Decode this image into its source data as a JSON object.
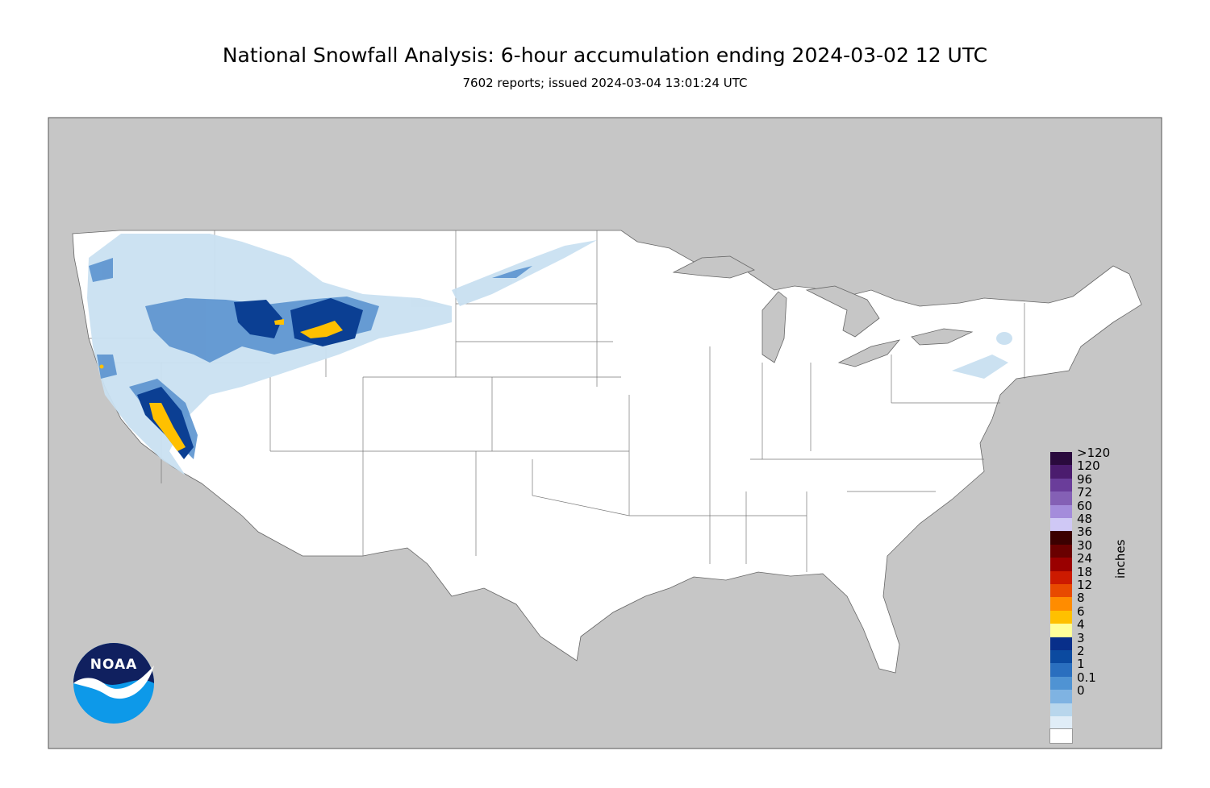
{
  "title": "National Snowfall Analysis: 6-hour accumulation ending 2024-03-02 12 UTC",
  "subtitle": "7602 reports; issued 2024-03-04 13:01:24 UTC",
  "logo_text": "NOAA",
  "legend": {
    "units": "inches",
    "items": [
      {
        "label": ">120",
        "color": "#2a0a3d"
      },
      {
        "label": "120",
        "color": "#4b1c6e"
      },
      {
        "label": "96",
        "color": "#6a3d9a"
      },
      {
        "label": "72",
        "color": "#8460b5"
      },
      {
        "label": "60",
        "color": "#a48cdb"
      },
      {
        "label": "48",
        "color": "#cfc8f5"
      },
      {
        "label": "36",
        "color": "#3b0000"
      },
      {
        "label": "30",
        "color": "#6a0000"
      },
      {
        "label": "24",
        "color": "#9a0000"
      },
      {
        "label": "18",
        "color": "#cc1a00"
      },
      {
        "label": "12",
        "color": "#e84a00"
      },
      {
        "label": "8",
        "color": "#ff8c00"
      },
      {
        "label": "6",
        "color": "#ffc000"
      },
      {
        "label": "4",
        "color": "#ffff99"
      },
      {
        "label": "3",
        "color": "#082f8a"
      },
      {
        "label": "2",
        "color": "#0b4aa0"
      },
      {
        "label": "1",
        "color": "#2a6fbf"
      },
      {
        "label": "0.1",
        "color": "#4f93d3"
      },
      {
        "label": "0",
        "color": "#7fb3e2"
      }
    ],
    "extra_colors": [
      "#b8d6ec",
      "#e0edf7",
      "#ffffff"
    ]
  },
  "colors": {
    "background_land": "#c6c6c6",
    "conus": "#ffffff",
    "snow_light": "#c9e0f1",
    "snow_med": "#5b93cf",
    "snow_heavy": "#0b3f93",
    "snow_extreme": "#ffc000"
  }
}
